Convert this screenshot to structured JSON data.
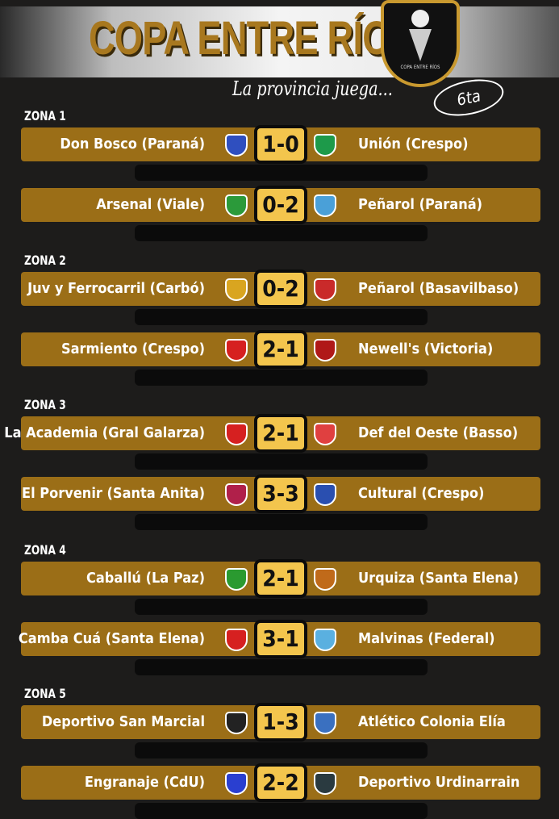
{
  "header": {
    "title": "COPA ENTRE RÍOS",
    "slogan": "La provincia juega...",
    "edition": "6ta",
    "badge_text": "COPA ENTRE RÍOS"
  },
  "zones": [
    {
      "label": "ZONA 1",
      "matches": [
        {
          "home": "Don Bosco (Paraná)",
          "score": "1-0",
          "away": "Unión (Crespo)",
          "home_color": "#2f4fbf",
          "away_color": "#1d9a4a"
        },
        {
          "home": "Arsenal (Viale)",
          "score": "0-2",
          "away": "Peñarol (Paraná)",
          "home_color": "#2b9a3a",
          "away_color": "#4aa0d8"
        }
      ]
    },
    {
      "label": "ZONA 2",
      "matches": [
        {
          "home": "Juv y Ferrocarril (Carbó)",
          "score": "0-2",
          "away": "Peñarol (Basavilbaso)",
          "home_color": "#d9a520",
          "away_color": "#c92a2a"
        },
        {
          "home": "Sarmiento (Crespo)",
          "score": "2-1",
          "away": "Newell's (Victoria)",
          "home_color": "#d62020",
          "away_color": "#b01818"
        }
      ]
    },
    {
      "label": "ZONA 3",
      "matches": [
        {
          "home": "La Academia (Gral Galarza)",
          "score": "2-1",
          "away": "Def del Oeste (Basso)",
          "home_color": "#d62020",
          "away_color": "#e04040"
        },
        {
          "home": "El Porvenir (Santa Anita)",
          "score": "3-3",
          "away": "Cultural (Crespo)",
          "home_color": "#b0204a",
          "away_color": "#2a4fb0"
        }
      ]
    },
    {
      "label": "ZONA 4",
      "matches": [
        {
          "home": "Caballú (La Paz)",
          "score": "2-1",
          "away": "Urquiza (Santa Elena)",
          "home_color": "#2a9a30",
          "away_color": "#c06a1a"
        },
        {
          "home": "Camba Cuá (Santa Elena)",
          "score": "3-1",
          "away": "Malvinas (Federal)",
          "home_color": "#d62020",
          "away_color": "#5ab0e0"
        }
      ]
    },
    {
      "label": "ZONA 5",
      "matches": [
        {
          "home": "Deportivo San Marcial",
          "score": "1-3",
          "away": "Atlético Colonia Elía",
          "home_color": "#222222",
          "away_color": "#3a70c0"
        },
        {
          "home": "Engranaje (CdU)",
          "score": "2-2",
          "away": "Deportivo Urdinarrain",
          "home_color": "#2a3fd0",
          "away_color": "#2a3a40"
        }
      ]
    }
  ]
}
